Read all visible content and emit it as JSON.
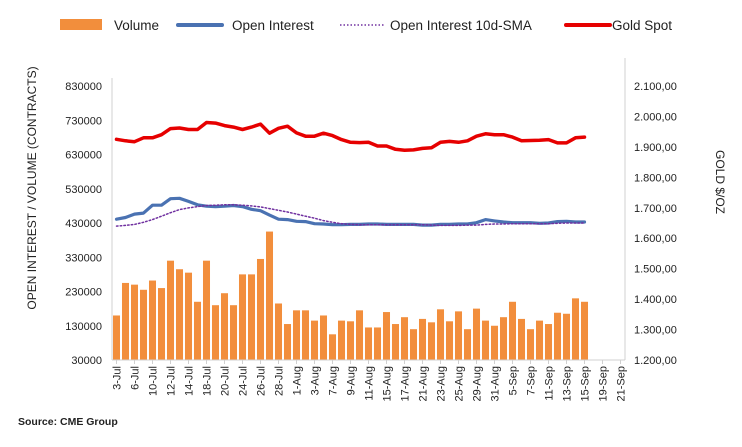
{
  "chart_data": {
    "type": "bar",
    "legend_placement": "top",
    "grid": false,
    "legend": [
      {
        "key": "volume",
        "label": "Volume",
        "style": "bar",
        "color": "#F28E3C"
      },
      {
        "key": "oi",
        "label": "Open Interest",
        "style": "line",
        "color": "#4A72B2"
      },
      {
        "key": "sma",
        "label": "Open Interest 10d-SMA",
        "style": "dotted",
        "color": "#7030A0"
      },
      {
        "key": "gold",
        "label": "Gold Spot",
        "style": "line",
        "color": "#E60000"
      }
    ],
    "y_left": {
      "title": "OPEN INTEREST / VOLUME (CONTRACTS)",
      "ticks": [
        "830000",
        "730000",
        "630000",
        "530000",
        "430000",
        "330000",
        "230000",
        "130000",
        "30000"
      ],
      "range": [
        30000,
        830000
      ]
    },
    "y_right": {
      "title": "GOLD $/OZ",
      "ticks": [
        "2.100,00",
        "2.000,00",
        "1.900,00",
        "1.800,00",
        "1.700,00",
        "1.600,00",
        "1.500,00",
        "1.400,00",
        "1.300,00",
        "1.200,00"
      ],
      "range": [
        1200,
        2100
      ]
    },
    "x_tick_labels": [
      "3-Jul",
      "6-Jul",
      "10-Jul",
      "12-Jul",
      "14-Jul",
      "18-Jul",
      "20-Jul",
      "24-Jul",
      "26-Jul",
      "28-Jul",
      "1-Aug",
      "3-Aug",
      "7-Aug",
      "9-Aug",
      "11-Aug",
      "15-Aug",
      "17-Aug",
      "21-Aug",
      "23-Aug",
      "25-Aug",
      "29-Aug",
      "31-Aug",
      "5-Sep",
      "7-Sep",
      "11-Sep",
      "13-Sep",
      "15-Sep",
      "19-Sep",
      "21-Sep"
    ],
    "volume": [
      160000,
      255000,
      250000,
      235000,
      262000,
      240000,
      320000,
      295000,
      285000,
      200000,
      320000,
      190000,
      225000,
      190000,
      280000,
      280000,
      325000,
      405000,
      195000,
      135000,
      175000,
      175000,
      145000,
      160000,
      105000,
      145000,
      143000,
      175000,
      125000,
      125000,
      170000,
      135000,
      155000,
      120000,
      150000,
      140000,
      178000,
      143000,
      172000,
      120000,
      180000,
      145000,
      130000,
      155000,
      200000,
      150000,
      120000,
      145000,
      135000,
      168000,
      165000,
      210000,
      200000
    ],
    "open_interest": [
      441000,
      446000,
      456000,
      459000,
      482000,
      482000,
      501000,
      502000,
      493000,
      483000,
      479000,
      478000,
      479000,
      481000,
      478000,
      470000,
      466000,
      453000,
      441000,
      440000,
      435000,
      434000,
      428000,
      427000,
      425000,
      425000,
      426000,
      426000,
      427000,
      427000,
      426000,
      426000,
      426000,
      426000,
      424000,
      424000,
      426000,
      426000,
      427000,
      427000,
      431000,
      440000,
      436000,
      433000,
      431000,
      431000,
      431000,
      429000,
      430000,
      434000,
      435000,
      433000,
      433000
    ],
    "open_interest_sma": [
      421000,
      423000,
      426000,
      432000,
      440000,
      450000,
      460000,
      469000,
      474000,
      478000,
      481000,
      482000,
      483000,
      483000,
      482000,
      480000,
      477000,
      472000,
      467000,
      462000,
      456000,
      450000,
      444000,
      437000,
      432000,
      428000,
      426000,
      425000,
      425000,
      425000,
      425000,
      425000,
      425000,
      425000,
      425000,
      424000,
      423000,
      423000,
      423000,
      424000,
      424000,
      426000,
      427000,
      427000,
      428000,
      428000,
      428000,
      428000,
      428000,
      429000,
      430000,
      430000,
      430000
    ],
    "gold_spot": [
      1925,
      1920,
      1917,
      1930,
      1930,
      1940,
      1960,
      1962,
      1957,
      1957,
      1980,
      1978,
      1970,
      1965,
      1957,
      1965,
      1975,
      1945,
      1961,
      1968,
      1946,
      1935,
      1935,
      1945,
      1937,
      1924,
      1915,
      1914,
      1915,
      1903,
      1903,
      1892,
      1889,
      1890,
      1895,
      1897,
      1915,
      1918,
      1915,
      1920,
      1935,
      1943,
      1940,
      1940,
      1932,
      1920,
      1921,
      1922,
      1924,
      1913,
      1913,
      1930,
      1932
    ]
  },
  "source": "Source: CME Group"
}
